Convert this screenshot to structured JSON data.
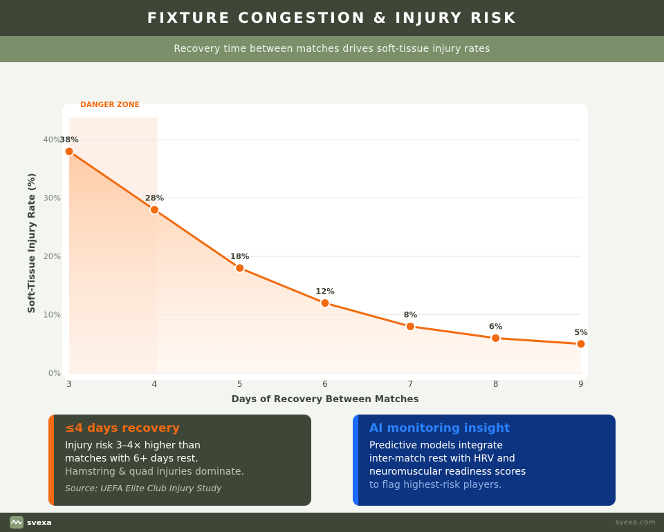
{
  "header": {
    "title": "FIXTURE CONGESTION & INJURY RISK"
  },
  "subheader": {
    "text": "Recovery time between matches drives soft-tissue injury rates"
  },
  "chart_data": {
    "type": "area",
    "x": [
      3,
      4,
      5,
      6,
      7,
      8,
      9
    ],
    "values": [
      38,
      28,
      18,
      12,
      8,
      6,
      5
    ],
    "data_labels": [
      "38%",
      "28%",
      "18%",
      "12%",
      "8%",
      "6%",
      "5%"
    ],
    "xlabel": "Days of Recovery Between Matches",
    "ylabel": "Soft-Tissue Injury Rate (%)",
    "xlim": [
      3,
      9
    ],
    "ylim": [
      0,
      45
    ],
    "x_ticks": [
      "3",
      "4",
      "5",
      "6",
      "7",
      "8",
      "9"
    ],
    "y_ticks": [
      0,
      10,
      20,
      30,
      40
    ],
    "y_tick_labels": [
      "0%",
      "10%",
      "20%",
      "30%",
      "40%"
    ],
    "grid": "horizontal",
    "highlight_region": {
      "label": "DANGER ZONE",
      "x_range": [
        3,
        4
      ]
    },
    "colors": {
      "line": "#f26a0f",
      "highlight_label": "#f26a0f",
      "fill": "#ffd3b5"
    }
  },
  "cards": {
    "left": {
      "title": "≤4 days recovery",
      "line1": "Injury risk 3–4× higher than",
      "line2": "matches with 6+ days rest.",
      "line3": "Hamstring & quad injuries dominate.",
      "source": "Source: UEFA Elite Club Injury Study"
    },
    "right": {
      "title": "AI monitoring insight",
      "line1": "Predictive models integrate",
      "line2": "inter-match rest with HRV and",
      "line3": "neuromuscular readiness scores",
      "line4": "to flag highest-risk players."
    }
  },
  "footer": {
    "brand": "svexa",
    "site": "svexa.com",
    "icon": "waveform-icon"
  }
}
